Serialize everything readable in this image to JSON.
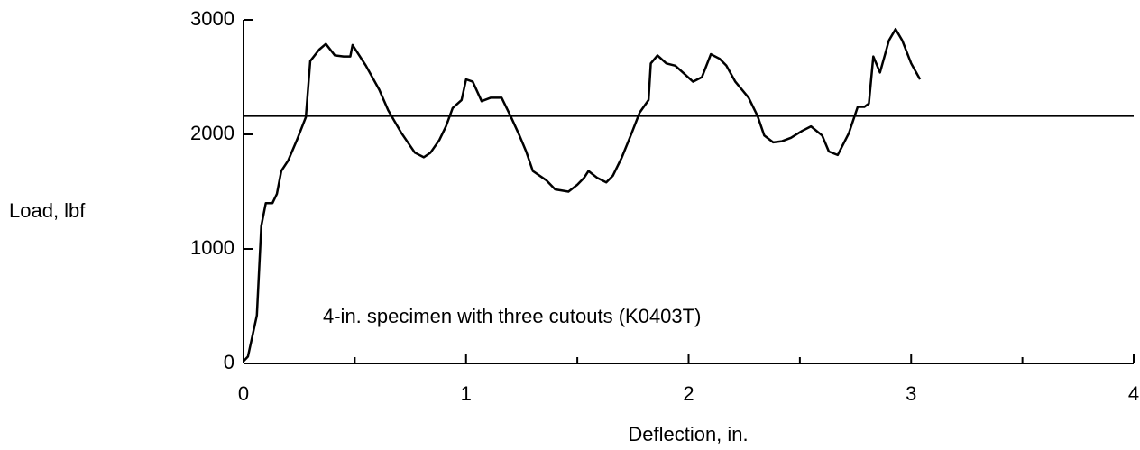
{
  "chart_data": {
    "type": "line",
    "xlabel": "Deflection, in.",
    "ylabel": "Load, lbf",
    "annotation": "4-in. specimen with three cutouts (K0403T)",
    "color": "#000000",
    "x": [
      0,
      0.02,
      0.06,
      0.08,
      0.1,
      0.13,
      0.15,
      0.17,
      0.2,
      0.24,
      0.28,
      0.3,
      0.34,
      0.37,
      0.41,
      0.45,
      0.48,
      0.49,
      0.55,
      0.61,
      0.65,
      0.71,
      0.77,
      0.81,
      0.84,
      0.88,
      0.91,
      0.94,
      0.98,
      1.0,
      1.03,
      1.07,
      1.11,
      1.16,
      1.2,
      1.24,
      1.27,
      1.3,
      1.36,
      1.4,
      1.46,
      1.5,
      1.53,
      1.55,
      1.59,
      1.63,
      1.66,
      1.7,
      1.74,
      1.78,
      1.82,
      1.83,
      1.86,
      1.9,
      1.94,
      1.98,
      2.02,
      2.06,
      2.1,
      2.14,
      2.17,
      2.21,
      2.27,
      2.31,
      2.34,
      2.38,
      2.42,
      2.46,
      2.51,
      2.55,
      2.6,
      2.63,
      2.67,
      2.72,
      2.76,
      2.79,
      2.81,
      2.83,
      2.86,
      2.9,
      2.93,
      2.96,
      3.0,
      3.04
    ],
    "values": [
      20,
      60,
      420,
      1200,
      1400,
      1400,
      1480,
      1680,
      1770,
      1950,
      2150,
      2640,
      2740,
      2790,
      2690,
      2680,
      2680,
      2780,
      2600,
      2390,
      2210,
      2010,
      1840,
      1800,
      1840,
      1950,
      2070,
      2230,
      2300,
      2480,
      2460,
      2290,
      2320,
      2320,
      2160,
      1990,
      1850,
      1680,
      1600,
      1520,
      1500,
      1560,
      1620,
      1680,
      1620,
      1580,
      1640,
      1800,
      1990,
      2190,
      2300,
      2620,
      2690,
      2620,
      2600,
      2530,
      2460,
      2500,
      2700,
      2660,
      2600,
      2460,
      2320,
      2160,
      1990,
      1930,
      1940,
      1970,
      2030,
      2070,
      1990,
      1850,
      1820,
      2010,
      2240,
      2240,
      2270,
      2680,
      2540,
      2820,
      2920,
      2820,
      2620,
      2480
    ],
    "hline": 2160,
    "xlim": [
      0,
      4
    ],
    "xticks": [
      0,
      1,
      2,
      3,
      4
    ],
    "xminor_ticks": [
      0.5,
      1.5,
      2.5,
      3.5
    ],
    "ylim": [
      0,
      3000
    ],
    "yticks": [
      0,
      1000,
      2000,
      3000
    ]
  }
}
